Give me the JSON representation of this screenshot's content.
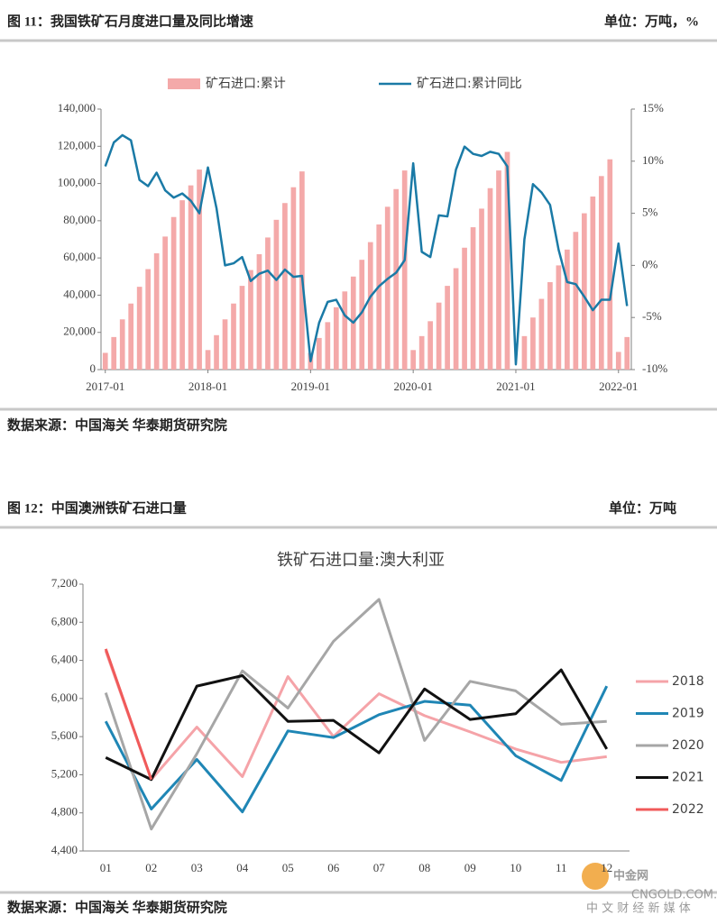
{
  "figures": [
    {
      "label": "图 11：我国铁矿石月度进口量及同比增速",
      "unit": "单位：万吨，%",
      "source": "数据来源：中国海关 华泰期货研究院"
    },
    {
      "label": "图 12：中国澳洲铁矿石进口量",
      "unit": "单位：万吨",
      "source": "数据来源：中国海关 华泰期货研究院"
    }
  ],
  "watermark": {
    "brand": "中金网",
    "url": "CNGOLD.COM.CN",
    "tagline": "中 文 财 经 新 媒 体"
  },
  "chart_data": [
    {
      "type": "bar",
      "legend": "top",
      "grid": false,
      "categories": [
        "2017-01",
        null,
        null,
        null,
        null,
        null,
        null,
        null,
        null,
        null,
        null,
        null,
        "2018-01",
        null,
        null,
        null,
        null,
        null,
        null,
        null,
        null,
        null,
        null,
        null,
        "2019-01",
        null,
        null,
        null,
        null,
        null,
        null,
        null,
        null,
        null,
        null,
        null,
        "2020-01",
        null,
        null,
        null,
        null,
        null,
        null,
        null,
        null,
        null,
        null,
        null,
        "2021-01",
        null,
        null,
        null,
        null,
        null,
        null,
        null,
        null,
        null,
        null,
        null,
        "2022-01",
        null
      ],
      "ylim": [
        0,
        140000
      ],
      "yticks": [
        0,
        {
          "value": 20000,
          "label": "20,000"
        },
        {
          "value": 40000,
          "label": "40,000"
        },
        {
          "value": 60000,
          "label": "60,000"
        },
        {
          "value": 80000,
          "label": "80,000"
        },
        {
          "value": 100000,
          "label": "100,000"
        },
        {
          "value": 120000,
          "label": "120,000"
        },
        {
          "value": 140000,
          "label": "140,000"
        }
      ],
      "y2lim": [
        -10,
        15
      ],
      "y2ticks": [
        {
          "value": -10,
          "label": "-10%"
        },
        {
          "value": -5,
          "label": "-5%"
        },
        {
          "value": 0,
          "label": "0%"
        },
        {
          "value": 5,
          "label": "5%"
        },
        {
          "value": 10,
          "label": "10%"
        },
        {
          "value": 15,
          "label": "15%"
        }
      ],
      "series": [
        {
          "name": "矿石进口:累计",
          "type": "bar",
          "color": "#f4a9a9",
          "values": [
            9000,
            17500,
            27000,
            35500,
            44500,
            54000,
            62500,
            71500,
            82000,
            91000,
            99000,
            107500,
            10500,
            18500,
            27000,
            35500,
            45000,
            53500,
            62000,
            71000,
            80500,
            89500,
            98000,
            106500,
            9000,
            17000,
            25500,
            33500,
            42000,
            50000,
            59000,
            68500,
            78000,
            87500,
            97000,
            107000,
            10500,
            18000,
            26000,
            36000,
            45000,
            54500,
            65500,
            76500,
            86500,
            97500,
            107000,
            117000,
            null,
            18000,
            28000,
            38000,
            47000,
            56000,
            64500,
            74000,
            84000,
            93000,
            104000,
            113000,
            9500,
            17500
          ]
        },
        {
          "name": "矿石进口:累计同比",
          "type": "line",
          "axis": "y2",
          "color": "#1a7aa6",
          "values": [
            9.5,
            11.8,
            12.5,
            12.0,
            8.2,
            7.6,
            8.9,
            7.2,
            6.5,
            6.9,
            6.2,
            5.0,
            9.4,
            5.5,
            0.0,
            0.2,
            0.8,
            -1.5,
            -0.8,
            -0.5,
            -1.4,
            -0.4,
            -1.1,
            -1.0,
            -9.2,
            -5.5,
            -3.5,
            -3.3,
            -4.8,
            -5.5,
            -4.5,
            -3.0,
            -2.0,
            -1.3,
            -0.7,
            0.5,
            9.8,
            1.3,
            0.8,
            4.8,
            4.7,
            9.2,
            11.4,
            10.7,
            10.5,
            10.9,
            10.7,
            9.5,
            -9.5,
            2.5,
            7.8,
            7.0,
            5.8,
            1.5,
            -1.6,
            -1.8,
            -3.0,
            -4.3,
            -3.3,
            -3.3,
            2.1,
            -3.9
          ]
        }
      ]
    },
    {
      "type": "line",
      "title": "铁矿石进口量:澳大利亚",
      "legend": "right",
      "grid": false,
      "categories": [
        "01",
        "02",
        "03",
        "04",
        "05",
        "06",
        "07",
        "08",
        "09",
        "10",
        "11",
        "12"
      ],
      "ylim": [
        4400,
        7200
      ],
      "yticks": [
        {
          "value": 4400,
          "label": "4,400"
        },
        {
          "value": 4800,
          "label": "4,800"
        },
        {
          "value": 5200,
          "label": "5,200"
        },
        {
          "value": 5600,
          "label": "5,600"
        },
        {
          "value": 6000,
          "label": "6,000"
        },
        {
          "value": 6400,
          "label": "6,400"
        },
        {
          "value": 6800,
          "label": "6,800"
        },
        {
          "value": 7200,
          "label": "7,200"
        }
      ],
      "series": [
        {
          "name": "2018",
          "color": "#f5a3a8",
          "values": [
            6500,
            5150,
            5700,
            5180,
            6230,
            5600,
            6050,
            5820,
            5650,
            5470,
            5330,
            5390
          ]
        },
        {
          "name": "2019",
          "color": "#1f86b5",
          "values": [
            5760,
            4840,
            5360,
            4810,
            5660,
            5590,
            5830,
            5970,
            5930,
            5400,
            5140,
            6130
          ]
        },
        {
          "name": "2020",
          "color": "#a6a6a6",
          "values": [
            6060,
            4630,
            5420,
            6290,
            5900,
            6600,
            7040,
            5560,
            6180,
            6080,
            5730,
            5760
          ]
        },
        {
          "name": "2021",
          "color": "#111111",
          "values": [
            5380,
            5150,
            6130,
            6240,
            5760,
            5770,
            5430,
            6100,
            5780,
            5840,
            6300,
            5470
          ]
        },
        {
          "name": "2022",
          "color": "#f05a5a",
          "values": [
            6520,
            5150,
            null,
            null,
            null,
            null,
            null,
            null,
            null,
            null,
            null,
            null
          ]
        }
      ]
    }
  ]
}
